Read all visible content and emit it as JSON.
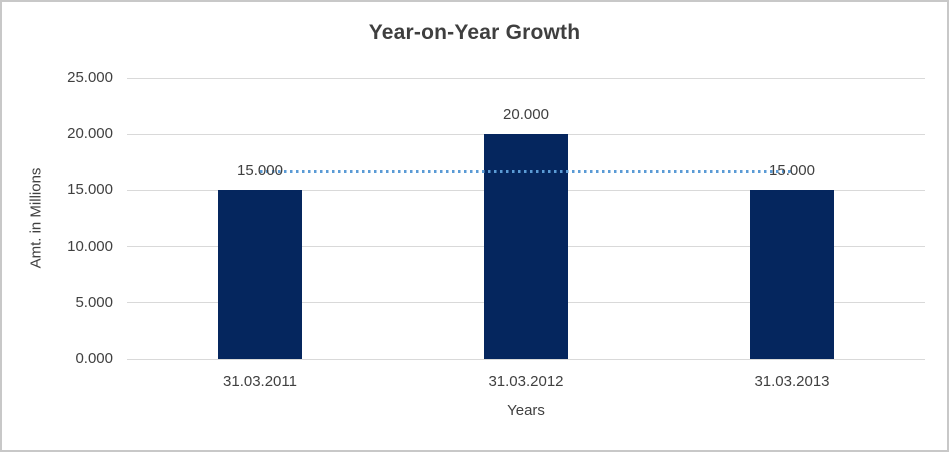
{
  "chart_data": {
    "type": "bar",
    "title": "Year-on-Year Growth",
    "xlabel": "Years",
    "ylabel": "Amt. in Millions",
    "categories": [
      "31.03.2011",
      "31.03.2012",
      "31.03.2013"
    ],
    "values": [
      15,
      20,
      15
    ],
    "value_labels": [
      "15.000",
      "20.000",
      "15.000"
    ],
    "ylim": [
      0,
      25
    ],
    "yticks": {
      "values": [
        0,
        5,
        10,
        15,
        20,
        25
      ],
      "labels": [
        "0.000",
        "5.000",
        "10.000",
        "15.000",
        "20.000",
        "25.000"
      ]
    },
    "grid": true,
    "legend": false,
    "bar_color": "#05265e",
    "gridline_color": "#d9d9d9",
    "text_color": "#404040",
    "trendline": {
      "type": "linear",
      "style": "dotted",
      "color": "#5b9bd5",
      "value": 16.67,
      "spans_categories": [
        "31.03.2011",
        "31.03.2013"
      ]
    }
  }
}
